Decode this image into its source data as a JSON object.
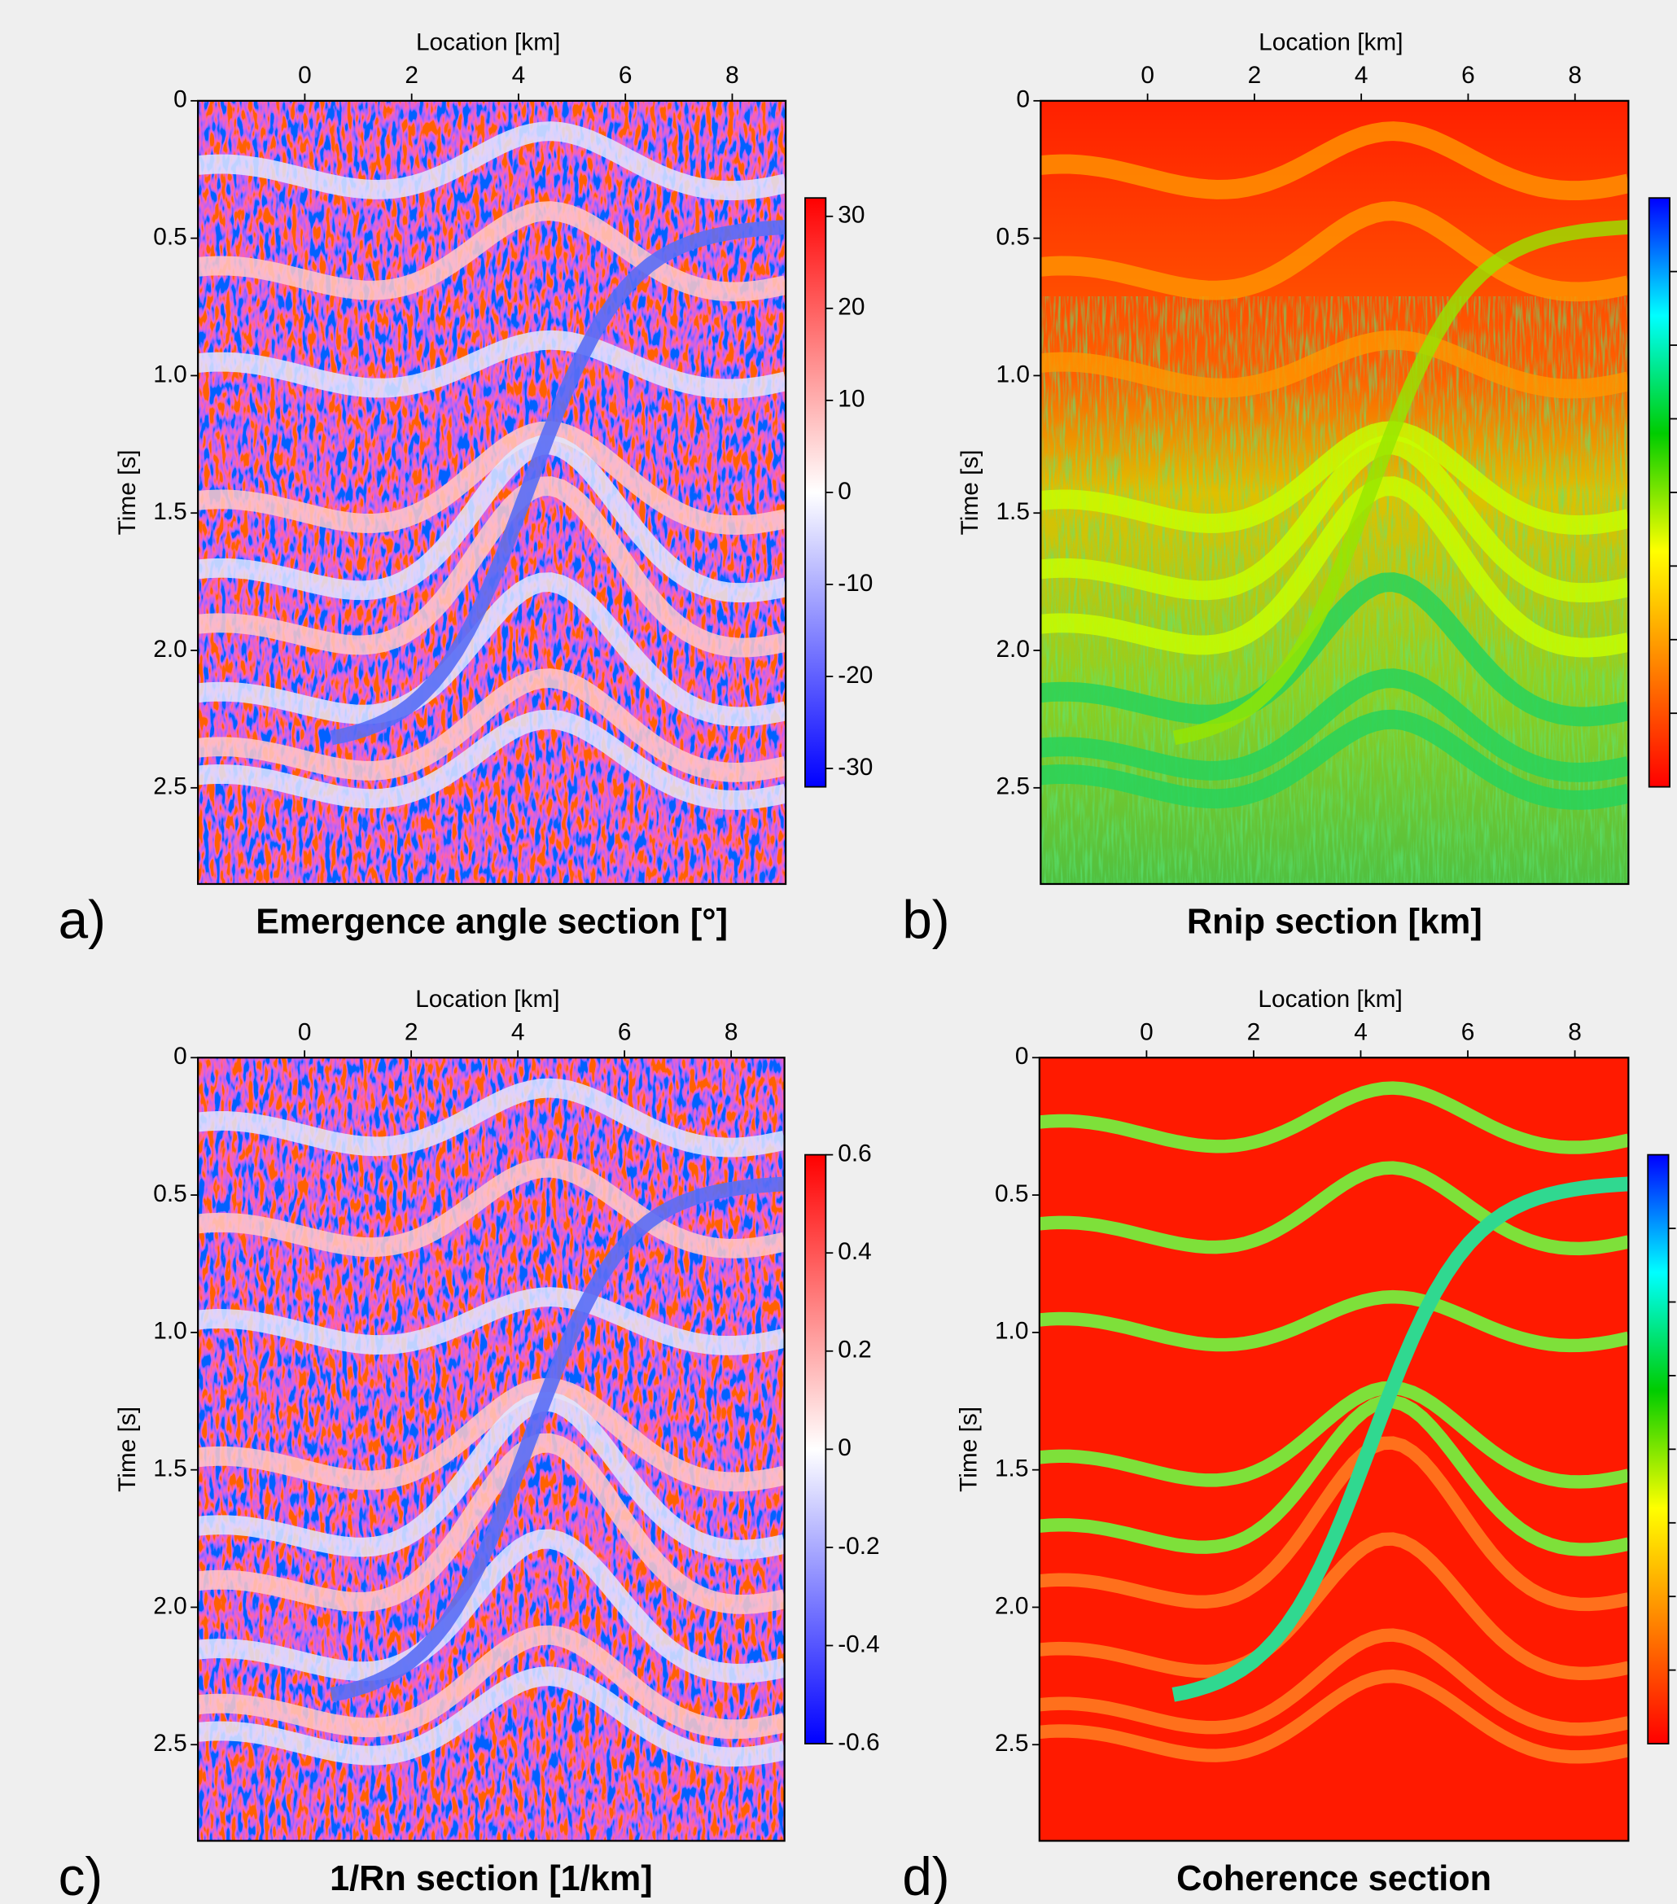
{
  "chart_data": [
    {
      "type": "heatmap",
      "panel_label": "a)",
      "title": "Emergence angle section [°]",
      "x_label": "Location [km]",
      "y_label": "Time [s]",
      "xlim": [
        -2,
        9
      ],
      "xticks": [
        0,
        2,
        4,
        6,
        8
      ],
      "ylim": [
        0,
        2.85
      ],
      "y_inverted": true,
      "yticks": [
        0,
        0.5,
        {
          "value": 1,
          "label": "1.0"
        },
        1.5,
        {
          "value": 2,
          "label": "2.0"
        },
        2.5
      ],
      "colorbar": {
        "lim": [
          -32,
          32
        ],
        "ticks": [
          -30,
          -20,
          -10,
          0,
          10,
          20,
          30
        ],
        "colors": [
          "#0000ff",
          "#ffffff",
          "#ff0000"
        ]
      }
    },
    {
      "type": "heatmap",
      "panel_label": "b)",
      "title": "Rnip section [km]",
      "x_label": "Location [km]",
      "y_label": "Time [s]",
      "xlim": [
        -2,
        9
      ],
      "xticks": [
        0,
        2,
        4,
        6,
        8
      ],
      "ylim": [
        0,
        2.85
      ],
      "y_inverted": true,
      "yticks": [
        0,
        0.5,
        {
          "value": 1,
          "label": "1.0"
        },
        1.5,
        {
          "value": 2,
          "label": "2.0"
        },
        2.5
      ],
      "colorbar": {
        "colors": [
          "#ff0000",
          "#ff8000",
          "#ffff00",
          "#00cc00",
          "#00ffff",
          "#0000ff"
        ]
      }
    },
    {
      "type": "heatmap",
      "panel_label": "c)",
      "title": "1/Rn section [1/km]",
      "x_label": "Location [km]",
      "y_label": "Time [s]",
      "xlim": [
        -2,
        9
      ],
      "xticks": [
        0,
        2,
        4,
        6,
        8
      ],
      "ylim": [
        0,
        2.85
      ],
      "y_inverted": true,
      "yticks": [
        0,
        0.5,
        {
          "value": 1,
          "label": "1.0"
        },
        1.5,
        {
          "value": 2,
          "label": "2.0"
        },
        2.5
      ],
      "colorbar": {
        "lim": [
          -0.6,
          0.6
        ],
        "ticks": [
          -0.6,
          -0.4,
          -0.2,
          0,
          0.2,
          0.4,
          0.6
        ],
        "colors": [
          "#0000ff",
          "#ffffff",
          "#ff0000"
        ]
      }
    },
    {
      "type": "heatmap",
      "panel_label": "d)",
      "title": "Coherence section",
      "x_label": "Location [km]",
      "y_label": "Time [s]",
      "xlim": [
        -2,
        9
      ],
      "xticks": [
        0,
        2,
        4,
        6,
        8
      ],
      "ylim": [
        0,
        2.85
      ],
      "y_inverted": true,
      "yticks": [
        0,
        0.5,
        {
          "value": 1,
          "label": "1.0"
        },
        1.5,
        {
          "value": 2,
          "label": "2.0"
        },
        2.5
      ],
      "colorbar": {
        "colors": [
          "#ff0000",
          "#ff8000",
          "#ffff00",
          "#00cc00",
          "#00ffff",
          "#0000ff"
        ]
      }
    }
  ]
}
